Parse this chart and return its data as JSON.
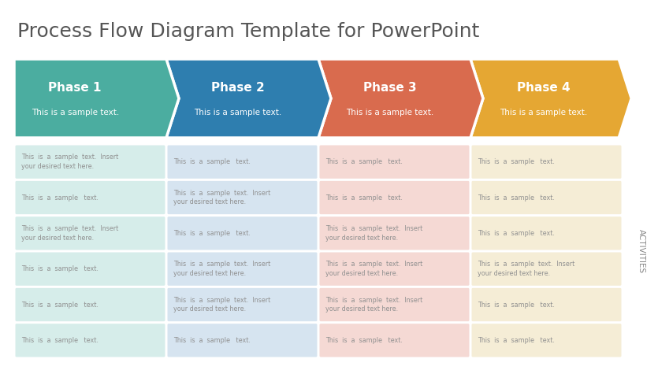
{
  "title": "Process Flow Diagram Template for PowerPoint",
  "title_fontsize": 18,
  "title_color": "#555555",
  "background_color": "#ffffff",
  "phases": [
    "Phase 1",
    "Phase 2",
    "Phase 3",
    "Phase 4"
  ],
  "phase_subtitle": "This is a sample text.",
  "phase_colors": [
    "#4BADA0",
    "#2E7EAF",
    "#D96B4E",
    "#E5A733"
  ],
  "cell_bg_colors": [
    "#D6EDEA",
    "#D6E4F0",
    "#F5D9D4",
    "#F5EDD6"
  ],
  "activities_label": "ACTIVITIES",
  "num_rows": 6,
  "row_texts": [
    [
      "This  is  a  sample  text.  Insert\nyour desired text here.",
      "This  is  a  sample   text.",
      "This  is  a  sample   text.",
      "This  is  a  sample   text."
    ],
    [
      "This  is  a  sample   text.",
      "This  is  a  sample  text.  Insert\nyour desired text here.",
      "This  is  a  sample   text.",
      "This  is  a  sample   text."
    ],
    [
      "This  is  a  sample  text.  Insert\nyour desired text here.",
      "This  is  a  sample   text.",
      "This  is  a  sample  text.  Insert\nyour desired text here.",
      "This  is  a  sample   text."
    ],
    [
      "This  is  a  sample   text.",
      "This  is  a  sample  text.  Insert\nyour desired text here.",
      "This  is  a  sample  text.  Insert\nyour desired text here.",
      "This  is  a  sample  text.  Insert\nyour desired text here."
    ],
    [
      "This  is  a  sample   text.",
      "This  is  a  sample  text.  Insert\nyour desired text here.",
      "This  is  a  sample  text.  Insert\nyour desired text here.",
      "This  is  a  sample   text."
    ],
    [
      "This  is  a  sample   text.",
      "This  is  a  sample   text.",
      "This  is  a  sample   text.",
      "This  is  a  sample   text."
    ]
  ],
  "cell_text_color": "#909090",
  "cell_text_fontsize": 5.8,
  "phase_label_fontsize": 11,
  "phase_subtitle_fontsize": 7.5,
  "activities_fontsize": 7.5,
  "activities_color": "#888888"
}
